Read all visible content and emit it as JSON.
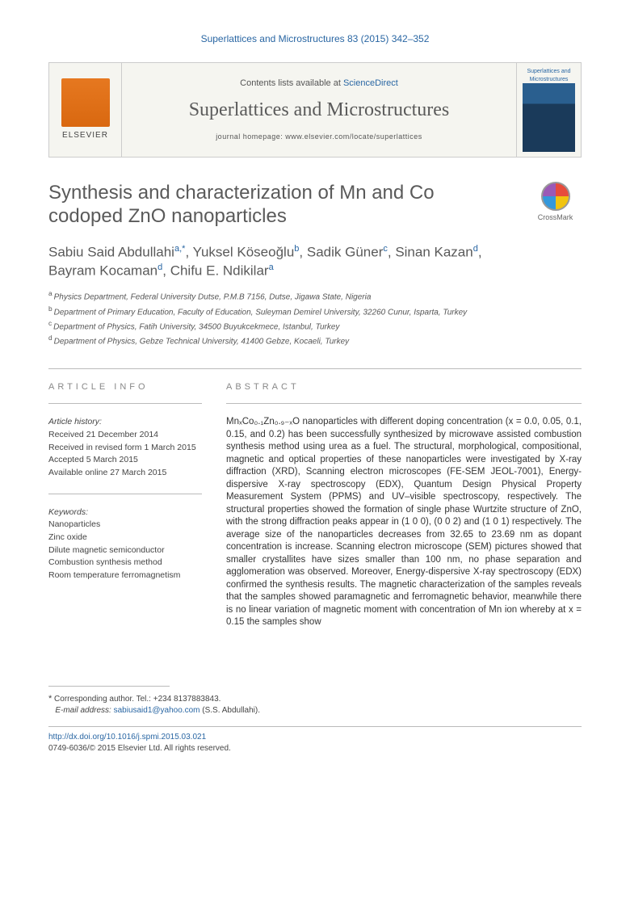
{
  "citation": "Superlattices and Microstructures 83 (2015) 342–352",
  "header": {
    "contents_prefix": "Contents lists available at ",
    "contents_link": "ScienceDirect",
    "journal_name": "Superlattices and Microstructures",
    "homepage": "journal homepage: www.elsevier.com/locate/superlattices",
    "elsevier_label": "ELSEVIER",
    "cover_label": "Superlattices and Microstructures"
  },
  "title": "Synthesis and characterization of Mn and Co codoped ZnO nanoparticles",
  "crossmark_label": "CrossMark",
  "authors": [
    {
      "name": "Sabiu Said Abdullahi",
      "affil": "a,",
      "corr": "*"
    },
    {
      "name": "Yuksel Köseoğlu",
      "affil": "b"
    },
    {
      "name": "Sadik Güner",
      "affil": "c"
    },
    {
      "name": "Sinan Kazan",
      "affil": "d"
    },
    {
      "name": "Bayram Kocaman",
      "affil": "d"
    },
    {
      "name": "Chifu E. Ndikilar",
      "affil": "a"
    }
  ],
  "authors_line1": "Sabiu Said Abdullahi",
  "authors_sup1": "a,",
  "authors_ast": "*",
  "authors_sep": ", ",
  "authors_n2": "Yuksel Köseoğlu",
  "authors_sup2": "b",
  "authors_n3": "Sadik Güner",
  "authors_sup3": "c",
  "authors_n4": "Sinan Kazan",
  "authors_sup4": "d",
  "authors_n5": "Bayram Kocaman",
  "authors_sup5": "d",
  "authors_n6": "Chifu E. Ndikilar",
  "authors_sup6": "a",
  "affiliations": {
    "a": "Physics Department, Federal University Dutse, P.M.B 7156, Dutse, Jigawa State, Nigeria",
    "b": "Department of Primary Education, Faculty of Education, Suleyman Demirel University, 32260 Cunur, Isparta, Turkey",
    "c": "Department of Physics, Fatih University, 34500 Buyukcekmece, Istanbul, Turkey",
    "d": "Department of Physics, Gebze Technical University, 41400 Gebze, Kocaeli, Turkey"
  },
  "affil_sup": {
    "a": "a",
    "b": "b",
    "c": "c",
    "d": "d"
  },
  "article_info": {
    "heading": "ARTICLE INFO",
    "history_label": "Article history:",
    "received": "Received 21 December 2014",
    "revised": "Received in revised form 1 March 2015",
    "accepted": "Accepted 5 March 2015",
    "online": "Available online 27 March 2015",
    "keywords_label": "Keywords:",
    "keywords": [
      "Nanoparticles",
      "Zinc oxide",
      "Dilute magnetic semiconductor",
      "Combustion synthesis method",
      "Room temperature ferromagnetism"
    ]
  },
  "abstract": {
    "heading": "ABSTRACT",
    "text": "MnₓCo₀.₁Zn₀.₉₋ₓO nanoparticles with different doping concentration (x = 0.0, 0.05, 0.1, 0.15, and 0.2) has been successfully synthesized by microwave assisted combustion synthesis method using urea as a fuel. The structural, morphological, compositional, magnetic and optical properties of these nanoparticles were investigated by X-ray diffraction (XRD), Scanning electron microscopes (FE-SEM JEOL-7001), Energy-dispersive X-ray spectroscopy (EDX), Quantum Design Physical Property Measurement System (PPMS) and UV–visible spectroscopy, respectively. The structural properties showed the formation of single phase Wurtzite structure of ZnO, with the strong diffraction peaks appear in (1 0 0), (0 0 2) and (1 0 1) respectively. The average size of the nanoparticles decreases from 32.65 to 23.69 nm as dopant concentration is increase. Scanning electron microscope (SEM) pictures showed that smaller crystallites have sizes smaller than 100 nm, no phase separation and agglomeration was observed. Moreover, Energy-dispersive X-ray spectroscopy (EDX) confirmed the synthesis results. The magnetic characterization of the samples reveals that the samples showed paramagnetic and ferromagnetic behavior, meanwhile there is no linear variation of magnetic moment with concentration of Mn ion whereby at x = 0.15 the samples show"
  },
  "corresponding": {
    "ast": "*",
    "text": " Corresponding author. Tel.: +234 8137883843.",
    "email_label": "E-mail address: ",
    "email": "sabiusaid1@yahoo.com",
    "email_suffix": " (S.S. Abdullahi)."
  },
  "footer": {
    "doi": "http://dx.doi.org/10.1016/j.spmi.2015.03.021",
    "copyright": "0749-6036/© 2015 Elsevier Ltd. All rights reserved."
  },
  "colors": {
    "link": "#2966a3",
    "heading": "#5a5a5a",
    "text": "#333333",
    "muted": "#888888",
    "border": "#bbbbbb",
    "elsevier_orange": "#e67820",
    "cover_blue": "#2a5f8f"
  }
}
